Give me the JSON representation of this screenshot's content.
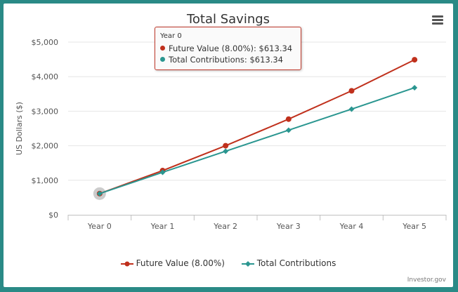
{
  "colors": {
    "future_value": "#c0301c",
    "contributions": "#2a9690",
    "grid": "#e6e6e6",
    "background": "#2a8a86"
  },
  "menu": {
    "icon": "hamburger-menu-icon"
  },
  "tooltip": {
    "header": "Year 0",
    "rows": [
      {
        "label": "Future Value (8.00%): $613.34"
      },
      {
        "label": "Total Contributions: $613.34"
      }
    ]
  },
  "legend": {
    "future_value": "Future Value (8.00%)",
    "contributions": "Total Contributions"
  },
  "credit": "Investor.gov",
  "chart_data": {
    "type": "line",
    "title": "Total Savings",
    "xlabel": "",
    "ylabel": "US Dollars ($)",
    "categories": [
      "Year 0",
      "Year 1",
      "Year 2",
      "Year 3",
      "Year 4",
      "Year 5"
    ],
    "ylim": [
      0,
      5000
    ],
    "yticks": [
      "$0",
      "$1,000",
      "$2,000",
      "$3,000",
      "$4,000",
      "$5,000"
    ],
    "grid": true,
    "legend_position": "bottom",
    "series": [
      {
        "name": "Future Value (8.00%)",
        "marker": "circle",
        "values": [
          613.34,
          1280,
          2000,
          2770,
          3590,
          4490
        ]
      },
      {
        "name": "Total Contributions",
        "marker": "diamond",
        "values": [
          613.34,
          1230,
          1840,
          2450,
          3060,
          3680
        ]
      }
    ],
    "highlighted": {
      "category": "Year 0"
    }
  }
}
